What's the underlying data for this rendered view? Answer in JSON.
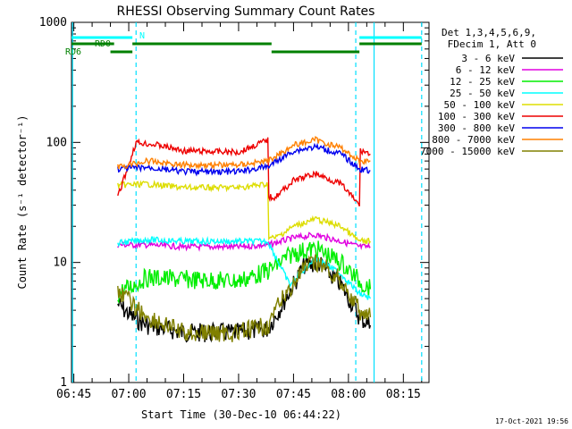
{
  "chart_data": {
    "type": "line",
    "title": "RHESSI Observing Summary Count Rates",
    "xlabel": "Start Time (30-Dec-10 06:44:22)",
    "ylabel": "Count Rate (s⁻¹ detector⁻¹)",
    "x_scale": "time",
    "y_scale": "log",
    "x_ticks": [
      "06:45",
      "07:00",
      "07:15",
      "07:30",
      "07:45",
      "08:00",
      "08:15"
    ],
    "y_ticks": [
      "1",
      "10",
      "100",
      "1000"
    ],
    "xlim": [
      "06:44:22",
      "08:22"
    ],
    "ylim": [
      1,
      1000
    ],
    "legend_header": [
      "Det 1,3,4,5,6,9,",
      "FDecim 1, Att 0"
    ],
    "legend_position": "top-right",
    "footer_date": "17-Oct-2021 19:56",
    "series": [
      {
        "name": "3 - 6 keV",
        "color": "#000000",
        "points": [
          [
            "06:57",
            "4.5"
          ],
          [
            "07:01",
            "3.5"
          ],
          [
            "07:05",
            "3.0"
          ],
          [
            "07:15",
            "2.6"
          ],
          [
            "07:30",
            "2.6"
          ],
          [
            "07:38",
            "2.8"
          ],
          [
            "07:42",
            "4.5"
          ],
          [
            "07:48",
            "9.5"
          ],
          [
            "07:52",
            "9.8"
          ],
          [
            "07:58",
            "6.5"
          ],
          [
            "08:03",
            "3.5"
          ],
          [
            "08:06",
            "3.0"
          ]
        ]
      },
      {
        "name": "6 - 12 keV",
        "color": "#e000e0",
        "points": [
          [
            "06:57",
            "14"
          ],
          [
            "07:05",
            "14"
          ],
          [
            "07:15",
            "13.5"
          ],
          [
            "07:30",
            "13.5"
          ],
          [
            "07:38",
            "14"
          ],
          [
            "07:45",
            "16"
          ],
          [
            "07:51",
            "17"
          ],
          [
            "07:58",
            "15"
          ],
          [
            "08:03",
            "13.5"
          ],
          [
            "08:06",
            "13.5"
          ]
        ]
      },
      {
        "name": "12 - 25 keV",
        "color": "#00ee00",
        "points": [
          [
            "06:57",
            "5.5"
          ],
          [
            "07:05",
            "7.5"
          ],
          [
            "07:15",
            "7.2"
          ],
          [
            "07:30",
            "7.0"
          ],
          [
            "07:38",
            "8.5"
          ],
          [
            "07:45",
            "12"
          ],
          [
            "07:51",
            "13"
          ],
          [
            "07:58",
            "10"
          ],
          [
            "08:03",
            "7"
          ],
          [
            "08:06",
            "6"
          ]
        ]
      },
      {
        "name": "25 - 50 keV",
        "color": "#00ffff",
        "points": [
          [
            "06:57",
            "14.5"
          ],
          [
            "07:05",
            "15.5"
          ],
          [
            "07:15",
            "15"
          ],
          [
            "07:30",
            "15"
          ],
          [
            "07:38",
            "15"
          ],
          [
            "07:44",
            "6.5"
          ],
          [
            "07:51",
            "11"
          ],
          [
            "07:58",
            "8"
          ],
          [
            "08:03",
            "5.5"
          ],
          [
            "08:06",
            "5"
          ]
        ]
      },
      {
        "name": "50 - 100 keV",
        "color": "#dddd00",
        "points": [
          [
            "06:57",
            "44"
          ],
          [
            "07:05",
            "45"
          ],
          [
            "07:15",
            "42"
          ],
          [
            "07:30",
            "42"
          ],
          [
            "07:38",
            "45"
          ],
          [
            "07:40",
            "16"
          ],
          [
            "07:45",
            "20"
          ],
          [
            "07:51",
            "23"
          ],
          [
            "07:58",
            "20"
          ],
          [
            "08:03",
            "15"
          ],
          [
            "08:06",
            "15"
          ]
        ]
      },
      {
        "name": "100 - 300 keV",
        "color": "#ee0000",
        "points": [
          [
            "06:57",
            "35"
          ],
          [
            "07:02",
            "100"
          ],
          [
            "07:08",
            "95"
          ],
          [
            "07:15",
            "85"
          ],
          [
            "07:30",
            "83"
          ],
          [
            "07:38",
            "105"
          ],
          [
            "07:40",
            "35"
          ],
          [
            "07:45",
            "48"
          ],
          [
            "07:51",
            "55"
          ],
          [
            "07:58",
            "45"
          ],
          [
            "08:03",
            "30"
          ],
          [
            "08:04",
            "85"
          ],
          [
            "08:06",
            "80"
          ]
        ]
      },
      {
        "name": "300 - 800 keV",
        "color": "#0000ee",
        "points": [
          [
            "06:57",
            "60"
          ],
          [
            "07:05",
            "62"
          ],
          [
            "07:15",
            "57"
          ],
          [
            "07:30",
            "57"
          ],
          [
            "07:38",
            "63"
          ],
          [
            "07:45",
            "85"
          ],
          [
            "07:51",
            "92"
          ],
          [
            "07:58",
            "80"
          ],
          [
            "08:03",
            "60"
          ],
          [
            "08:06",
            "58"
          ]
        ]
      },
      {
        "name": "800 - 7000 keV",
        "color": "#ff8000",
        "points": [
          [
            "06:57",
            "62"
          ],
          [
            "07:05",
            "70"
          ],
          [
            "07:15",
            "65"
          ],
          [
            "07:30",
            "65"
          ],
          [
            "07:38",
            "70"
          ],
          [
            "07:45",
            "95"
          ],
          [
            "07:51",
            "105"
          ],
          [
            "07:58",
            "90"
          ],
          [
            "08:03",
            "70"
          ],
          [
            "08:06",
            "70"
          ]
        ]
      },
      {
        "name": "7000 - 15000 keV",
        "color": "#808000",
        "points": [
          [
            "06:57",
            "6"
          ],
          [
            "07:01",
            "4.5"
          ],
          [
            "07:05",
            "3.5"
          ],
          [
            "07:15",
            "2.6"
          ],
          [
            "07:30",
            "2.6"
          ],
          [
            "07:38",
            "3"
          ],
          [
            "07:42",
            "5"
          ],
          [
            "07:48",
            "9"
          ],
          [
            "07:52",
            "10"
          ],
          [
            "07:58",
            "7"
          ],
          [
            "08:03",
            "4"
          ],
          [
            "08:06",
            "3.5"
          ]
        ]
      }
    ],
    "state_bars": [
      {
        "name": "N",
        "color": "#00ffff",
        "segments": [
          [
            "06:44:22",
            "07:01"
          ],
          [
            "08:03",
            "08:20"
          ]
        ]
      },
      {
        "name": "RD0",
        "color": "#008000",
        "segments": [
          [
            "06:44:22",
            "06:56"
          ],
          [
            "07:01",
            "07:39"
          ],
          [
            "08:03",
            "08:20"
          ]
        ]
      },
      {
        "name": "RD6",
        "color": "#008000",
        "segments": [
          [
            "06:55",
            "07:01"
          ],
          [
            "07:39",
            "08:03"
          ]
        ]
      }
    ],
    "markers": [
      {
        "time": "07:02",
        "style": "dashed"
      },
      {
        "time": "08:02",
        "style": "dashed"
      },
      {
        "time": "08:20",
        "style": "dashed"
      },
      {
        "time": "06:44:40",
        "style": "solid"
      },
      {
        "time": "08:07",
        "style": "solid"
      }
    ]
  }
}
